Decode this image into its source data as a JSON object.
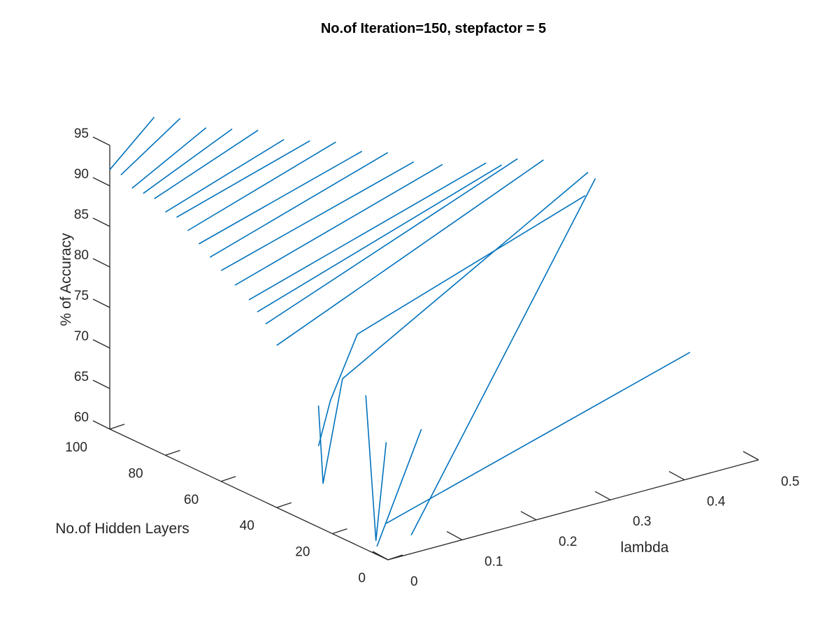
{
  "chart_data": {
    "type": "line",
    "projection": "3d",
    "title": "No.of Iteration=150, stepfactor = 5",
    "xlabel": "lambda",
    "ylabel": "No.of Hidden Layers",
    "zlabel": "% of Accuracy",
    "xlim": [
      0,
      0.5
    ],
    "ylim": [
      0,
      100
    ],
    "zlim": [
      60,
      95
    ],
    "x_ticks": [
      "0",
      "0.1",
      "0.2",
      "0.3",
      "0.4",
      "0.5"
    ],
    "y_ticks": [
      "0",
      "20",
      "40",
      "60",
      "80",
      "100"
    ],
    "z_ticks": [
      "60",
      "65",
      "70",
      "75",
      "80",
      "85",
      "90",
      "95"
    ],
    "grid": false,
    "line_color": "#0072BD",
    "series": [
      {
        "x": [
          0.05,
          0.46
        ],
        "y": [
          14,
          14
        ],
        "z": [
          61,
          72
        ]
      },
      {
        "x": [
          0.0,
          0.06
        ],
        "y": [
          4,
          4
        ],
        "z": [
          61,
          74
        ]
      },
      {
        "x": [
          0.05,
          0.43
        ],
        "y": [
          5,
          40
        ],
        "z": [
          61,
          90
        ]
      },
      {
        "x": [
          0.01,
          0.02,
          0.01,
          0.0
        ],
        "y": [
          7,
          6,
          7,
          8
        ],
        "z": [
          61,
          73,
          61,
          79
        ]
      },
      {
        "x": [
          0.0,
          0.01,
          0.04,
          0.42
        ],
        "y": [
          25,
          26,
          27,
          40
        ],
        "z": [
          75,
          65,
          77,
          91
        ]
      },
      {
        "x": [
          0.0,
          0.02,
          0.06,
          0.39
        ],
        "y": [
          25,
          26,
          27,
          33
        ],
        "z": [
          70,
          75,
          82,
          90
        ]
      },
      {
        "x": [
          0.0,
          0.36
        ],
        "y": [
          40,
          40
        ],
        "z": [
          80,
          94
        ]
      },
      {
        "x": [
          0.0,
          0.34
        ],
        "y": [
          44,
          44
        ],
        "z": [
          82,
          94
        ]
      },
      {
        "x": [
          0.0,
          0.33
        ],
        "y": [
          47,
          47
        ],
        "z": [
          83,
          93
        ]
      },
      {
        "x": [
          0.0,
          0.32
        ],
        "y": [
          50,
          50
        ],
        "z": [
          84,
          93
        ]
      },
      {
        "x": [
          0.0,
          0.28
        ],
        "y": [
          55,
          55
        ],
        "z": [
          85,
          93
        ]
      },
      {
        "x": [
          0.0,
          0.26
        ],
        "y": [
          60,
          60
        ],
        "z": [
          86,
          93
        ]
      },
      {
        "x": [
          0.0,
          0.24
        ],
        "y": [
          64,
          64
        ],
        "z": [
          87,
          94
        ]
      },
      {
        "x": [
          0.0,
          0.22
        ],
        "y": [
          68,
          68
        ],
        "z": [
          88,
          94
        ]
      },
      {
        "x": [
          0.0,
          0.2
        ],
        "y": [
          72,
          72
        ],
        "z": [
          89,
          95
        ]
      },
      {
        "x": [
          0.0,
          0.18
        ],
        "y": [
          76,
          76
        ],
        "z": [
          90,
          95
        ]
      },
      {
        "x": [
          0.0,
          0.16
        ],
        "y": [
          80,
          80
        ],
        "z": [
          90,
          95
        ]
      },
      {
        "x": [
          0.0,
          0.14
        ],
        "y": [
          84,
          84
        ],
        "z": [
          91,
          96
        ]
      },
      {
        "x": [
          0.0,
          0.12
        ],
        "y": [
          88,
          88
        ],
        "z": [
          91,
          96
        ]
      },
      {
        "x": [
          0.0,
          0.1
        ],
        "y": [
          92,
          92
        ],
        "z": [
          91,
          96
        ]
      },
      {
        "x": [
          0.0,
          0.08
        ],
        "y": [
          96,
          96
        ],
        "z": [
          92,
          97
        ]
      },
      {
        "x": [
          0.0,
          0.06
        ],
        "y": [
          100,
          100
        ],
        "z": [
          92,
          97
        ]
      }
    ]
  }
}
